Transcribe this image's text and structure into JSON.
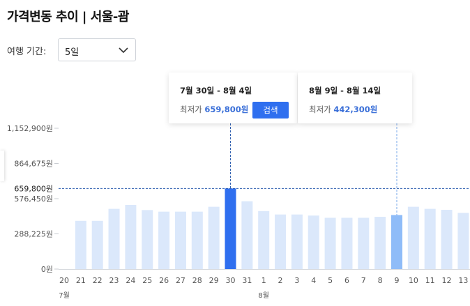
{
  "header": {
    "title": "가격변동 추이 | 서울-괌"
  },
  "filter": {
    "label": "여행 기간:",
    "selected": "5일"
  },
  "cards": [
    {
      "range": "7월 30일 - 8월 4일",
      "lowest_label": "최저가",
      "price": "659,800원",
      "search_label": "검색"
    },
    {
      "range": "8월 9일 - 8월 14일",
      "lowest_label": "최저가",
      "price": "442,300원"
    }
  ],
  "chart_data": {
    "type": "bar",
    "categories": [
      "20",
      "21",
      "22",
      "23",
      "24",
      "25",
      "26",
      "27",
      "28",
      "29",
      "30",
      "31",
      "1",
      "2",
      "3",
      "4",
      "5",
      "6",
      "7",
      "8",
      "9",
      "10",
      "11",
      "12",
      "13"
    ],
    "month_labels": [
      {
        "label": "7월",
        "category_index": 0
      },
      {
        "label": "8월",
        "category_index": 12
      }
    ],
    "values": [
      null,
      395000,
      395000,
      493000,
      525000,
      483000,
      470000,
      470000,
      470000,
      510000,
      659800,
      555000,
      475000,
      447000,
      447000,
      438000,
      420000,
      420000,
      420000,
      428000,
      442300,
      510000,
      493000,
      485000,
      460000
    ],
    "highlighted": [
      {
        "index": 10,
        "style": "selected"
      },
      {
        "index": 20,
        "style": "secondary"
      }
    ],
    "yticks": [
      0,
      288225,
      576450,
      864675,
      1152900
    ],
    "ytick_labels": [
      "0원",
      "288,225원",
      "576,450원",
      "864,675원",
      "1,152,900원"
    ],
    "reference_line": {
      "value": 659800,
      "label": "659,800원"
    },
    "ylim": [
      0,
      1152900
    ],
    "colors": {
      "bar": "#dbe8fb",
      "selected": "#2f6fef",
      "secondary": "#8fbcf8",
      "reference": "#2f5fb0"
    }
  }
}
